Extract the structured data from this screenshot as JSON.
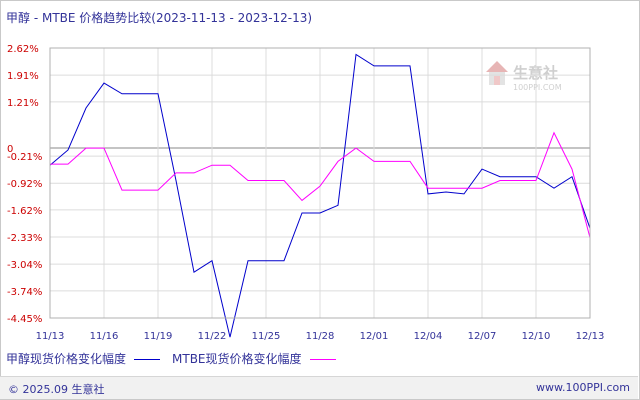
{
  "title": "甲醇 - MTBE 价格趋势比较(2023-11-13 - 2023-12-13)",
  "footer": {
    "copyright": "© 2025.09 生意社",
    "url": "www.100PPI.com"
  },
  "watermark": {
    "name": "生意社",
    "url": "100PPI.COM",
    "icon": "house-logo-icon"
  },
  "chart_data": {
    "type": "line",
    "title": "甲醇 - MTBE 价格趋势比较(2023-11-13 - 2023-12-13)",
    "ylim": [
      -4.45,
      2.62
    ],
    "y_ticks": [
      "2.62%",
      "1.91%",
      "1.21%",
      "0",
      "-0.21%",
      "-0.92%",
      "-1.62%",
      "-2.33%",
      "-3.04%",
      "-3.74%",
      "-4.45%"
    ],
    "y_tick_values": [
      2.62,
      1.91,
      1.21,
      0,
      -0.21,
      -0.92,
      -1.62,
      -2.33,
      -3.04,
      -3.74,
      -4.45
    ],
    "x_ticks": [
      "11/13",
      "11/16",
      "11/19",
      "11/22",
      "11/25",
      "11/28",
      "12/01",
      "12/04",
      "12/07",
      "12/10",
      "12/13"
    ],
    "x_tick_values": [
      0,
      3,
      6,
      9,
      12,
      15,
      18,
      21,
      24,
      27,
      30
    ],
    "grid": true,
    "legend": "bottom",
    "x": [
      0,
      1,
      2,
      3,
      4,
      5,
      6,
      7,
      8,
      9,
      10,
      11,
      12,
      13,
      14,
      15,
      16,
      17,
      18,
      19,
      20,
      21,
      22,
      23,
      24,
      25,
      26,
      27,
      28,
      29,
      30
    ],
    "series": [
      {
        "name": "甲醇现货价格变化幅度",
        "color": "#0000cc",
        "values": [
          -0.45,
          -0.05,
          1.05,
          1.7,
          1.42,
          1.42,
          1.42,
          -0.85,
          -3.25,
          -2.95,
          -4.95,
          -2.95,
          -2.95,
          -2.95,
          -1.7,
          -1.7,
          -1.5,
          2.45,
          2.15,
          2.15,
          2.15,
          -1.2,
          -1.15,
          -1.2,
          -0.55,
          -0.75,
          -0.75,
          -0.75,
          -1.05,
          -0.75,
          -2.1
        ]
      },
      {
        "name": "MTBE现货价格变化幅度",
        "color": "#ff00ff",
        "values": [
          -0.42,
          -0.42,
          0.0,
          0.0,
          -1.1,
          -1.1,
          -1.1,
          -0.65,
          -0.65,
          -0.45,
          -0.45,
          -0.85,
          -0.85,
          -0.85,
          -1.37,
          -1.0,
          -0.35,
          0.0,
          -0.35,
          -0.35,
          -0.35,
          -1.05,
          -1.05,
          -1.05,
          -1.05,
          -0.85,
          -0.85,
          -0.85,
          0.4,
          -0.55,
          -2.35
        ]
      }
    ]
  }
}
